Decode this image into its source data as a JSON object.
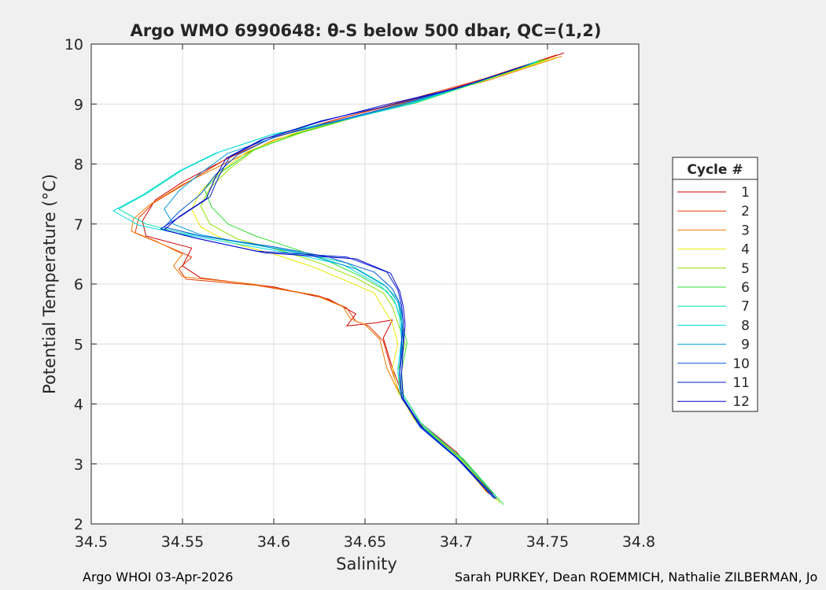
{
  "footer": {
    "left": "Argo WHOI 03-Apr-2026",
    "right": "Sarah PURKEY, Dean ROEMMICH, Nathalie ZILBERMAN, Jo"
  },
  "chart_data": {
    "type": "line",
    "title": "Argo WMO 6990648: θ-S below 500 dbar,  QC=(1,2)",
    "xlabel": "Salinity",
    "ylabel": "Potential Temperature (°C)",
    "xlim": [
      34.5,
      34.8
    ],
    "ylim": [
      2,
      10
    ],
    "xticks": [
      "34.5",
      "34.55",
      "34.6",
      "34.65",
      "34.7",
      "34.75",
      "34.8"
    ],
    "yticks": [
      "2",
      "3",
      "4",
      "5",
      "6",
      "7",
      "8",
      "9",
      "10"
    ],
    "grid": true,
    "legend": {
      "title": "Cycle #",
      "placement": "outside-right"
    },
    "series": [
      {
        "name": "1",
        "color": "#d00000",
        "points": [
          [
            34.759,
            9.85
          ],
          [
            34.72,
            9.45
          ],
          [
            34.68,
            9.1
          ],
          [
            34.635,
            8.75
          ],
          [
            34.6,
            8.45
          ],
          [
            34.575,
            8.1
          ],
          [
            34.55,
            7.7
          ],
          [
            34.535,
            7.4
          ],
          [
            34.528,
            7.05
          ],
          [
            34.53,
            6.8
          ],
          [
            34.555,
            6.6
          ],
          [
            34.55,
            6.3
          ],
          [
            34.56,
            6.1
          ],
          [
            34.6,
            5.95
          ],
          [
            34.63,
            5.75
          ],
          [
            34.645,
            5.5
          ],
          [
            34.64,
            5.3
          ],
          [
            34.655,
            5.35
          ],
          [
            34.665,
            5.4
          ],
          [
            34.66,
            5.1
          ],
          [
            34.665,
            4.6
          ],
          [
            34.67,
            4.2
          ],
          [
            34.68,
            3.7
          ],
          [
            34.7,
            3.2
          ],
          [
            34.72,
            2.5
          ]
        ]
      },
      {
        "name": "2",
        "color": "#e83800",
        "points": [
          [
            34.755,
            9.82
          ],
          [
            34.715,
            9.42
          ],
          [
            34.675,
            9.08
          ],
          [
            34.632,
            8.72
          ],
          [
            34.598,
            8.42
          ],
          [
            34.572,
            8.05
          ],
          [
            34.552,
            7.68
          ],
          [
            34.534,
            7.35
          ],
          [
            34.526,
            7.1
          ],
          [
            34.524,
            6.85
          ],
          [
            34.54,
            6.65
          ],
          [
            34.555,
            6.45
          ],
          [
            34.548,
            6.25
          ],
          [
            34.552,
            6.08
          ],
          [
            34.59,
            5.98
          ],
          [
            34.625,
            5.8
          ],
          [
            34.64,
            5.6
          ],
          [
            34.645,
            5.38
          ],
          [
            34.652,
            5.3
          ],
          [
            34.66,
            5.05
          ],
          [
            34.664,
            4.62
          ],
          [
            34.668,
            4.25
          ],
          [
            34.678,
            3.72
          ],
          [
            34.698,
            3.22
          ],
          [
            34.718,
            2.5
          ]
        ]
      },
      {
        "name": "3",
        "color": "#f07800",
        "points": [
          [
            34.758,
            9.8
          ],
          [
            34.718,
            9.4
          ],
          [
            34.676,
            9.06
          ],
          [
            34.634,
            8.7
          ],
          [
            34.6,
            8.4
          ],
          [
            34.574,
            8.02
          ],
          [
            34.55,
            7.66
          ],
          [
            34.532,
            7.32
          ],
          [
            34.523,
            7.08
          ],
          [
            34.522,
            6.88
          ],
          [
            34.535,
            6.72
          ],
          [
            34.55,
            6.5
          ],
          [
            34.545,
            6.3
          ],
          [
            34.55,
            6.12
          ],
          [
            34.588,
            6.0
          ],
          [
            34.622,
            5.82
          ],
          [
            34.638,
            5.62
          ],
          [
            34.642,
            5.42
          ],
          [
            34.65,
            5.32
          ],
          [
            34.658,
            5.08
          ],
          [
            34.662,
            4.6
          ],
          [
            34.667,
            4.28
          ],
          [
            34.677,
            3.74
          ],
          [
            34.697,
            3.24
          ],
          [
            34.717,
            2.52
          ]
        ]
      },
      {
        "name": "4",
        "color": "#e8e800",
        "points": [
          [
            34.755,
            9.78
          ],
          [
            34.716,
            9.4
          ],
          [
            34.678,
            9.05
          ],
          [
            34.64,
            8.75
          ],
          [
            34.61,
            8.5
          ],
          [
            34.585,
            8.2
          ],
          [
            34.57,
            7.85
          ],
          [
            34.56,
            7.55
          ],
          [
            34.555,
            7.25
          ],
          [
            34.56,
            6.95
          ],
          [
            34.575,
            6.7
          ],
          [
            34.6,
            6.5
          ],
          [
            34.62,
            6.3
          ],
          [
            34.64,
            6.05
          ],
          [
            34.655,
            5.85
          ],
          [
            34.66,
            5.6
          ],
          [
            34.665,
            5.35
          ],
          [
            34.668,
            5.0
          ],
          [
            34.665,
            4.6
          ],
          [
            34.668,
            4.2
          ],
          [
            34.678,
            3.7
          ],
          [
            34.7,
            3.15
          ],
          [
            34.722,
            2.4
          ]
        ]
      },
      {
        "name": "5",
        "color": "#90e000",
        "points": [
          [
            34.75,
            9.75
          ],
          [
            34.714,
            9.38
          ],
          [
            34.68,
            9.05
          ],
          [
            34.645,
            8.78
          ],
          [
            34.615,
            8.52
          ],
          [
            34.59,
            8.25
          ],
          [
            34.575,
            7.9
          ],
          [
            34.565,
            7.6
          ],
          [
            34.56,
            7.3
          ],
          [
            34.565,
            7.0
          ],
          [
            34.58,
            6.75
          ],
          [
            34.605,
            6.55
          ],
          [
            34.625,
            6.35
          ],
          [
            34.645,
            6.1
          ],
          [
            34.66,
            5.85
          ],
          [
            34.665,
            5.62
          ],
          [
            34.668,
            5.35
          ],
          [
            34.672,
            5.0
          ],
          [
            34.668,
            4.55
          ],
          [
            34.67,
            4.15
          ],
          [
            34.68,
            3.65
          ],
          [
            34.702,
            3.1
          ],
          [
            34.724,
            2.35
          ]
        ]
      },
      {
        "name": "6",
        "color": "#30e030",
        "points": [
          [
            34.748,
            9.74
          ],
          [
            34.712,
            9.36
          ],
          [
            34.678,
            9.02
          ],
          [
            34.642,
            8.76
          ],
          [
            34.612,
            8.5
          ],
          [
            34.588,
            8.22
          ],
          [
            34.572,
            7.88
          ],
          [
            34.562,
            7.58
          ],
          [
            34.566,
            7.28
          ],
          [
            34.575,
            7.0
          ],
          [
            34.59,
            6.8
          ],
          [
            34.61,
            6.6
          ],
          [
            34.63,
            6.38
          ],
          [
            34.648,
            6.12
          ],
          [
            34.662,
            5.88
          ],
          [
            34.667,
            5.65
          ],
          [
            34.67,
            5.38
          ],
          [
            34.673,
            5.02
          ],
          [
            34.67,
            4.55
          ],
          [
            34.671,
            4.15
          ],
          [
            34.682,
            3.62
          ],
          [
            34.704,
            3.08
          ],
          [
            34.726,
            2.32
          ]
        ]
      },
      {
        "name": "7",
        "color": "#00e0b0",
        "points": [
          [
            34.745,
            9.72
          ],
          [
            34.71,
            9.35
          ],
          [
            34.675,
            9.0
          ],
          [
            34.64,
            8.75
          ],
          [
            34.6,
            8.5
          ],
          [
            34.57,
            8.2
          ],
          [
            34.55,
            7.9
          ],
          [
            34.53,
            7.5
          ],
          [
            34.515,
            7.25
          ],
          [
            34.53,
            7.0
          ],
          [
            34.55,
            6.85
          ],
          [
            34.58,
            6.7
          ],
          [
            34.61,
            6.55
          ],
          [
            34.64,
            6.35
          ],
          [
            34.66,
            6.0
          ],
          [
            34.668,
            5.75
          ],
          [
            34.67,
            5.45
          ],
          [
            34.671,
            5.1
          ],
          [
            34.669,
            4.6
          ],
          [
            34.67,
            4.2
          ],
          [
            34.68,
            3.7
          ],
          [
            34.702,
            3.12
          ],
          [
            34.722,
            2.45
          ]
        ]
      },
      {
        "name": "8",
        "color": "#00d8e8",
        "points": [
          [
            34.744,
            9.7
          ],
          [
            34.708,
            9.34
          ],
          [
            34.672,
            8.98
          ],
          [
            34.638,
            8.73
          ],
          [
            34.598,
            8.48
          ],
          [
            34.568,
            8.18
          ],
          [
            34.548,
            7.88
          ],
          [
            34.528,
            7.48
          ],
          [
            34.512,
            7.22
          ],
          [
            34.526,
            6.98
          ],
          [
            34.548,
            6.84
          ],
          [
            34.578,
            6.68
          ],
          [
            34.608,
            6.52
          ],
          [
            34.638,
            6.32
          ],
          [
            34.658,
            5.98
          ],
          [
            34.666,
            5.74
          ],
          [
            34.669,
            5.44
          ],
          [
            34.67,
            5.08
          ],
          [
            34.668,
            4.58
          ],
          [
            34.669,
            4.18
          ],
          [
            34.679,
            3.68
          ],
          [
            34.701,
            3.1
          ],
          [
            34.721,
            2.44
          ]
        ]
      },
      {
        "name": "9",
        "color": "#0098e0",
        "points": [
          [
            34.742,
            9.68
          ],
          [
            34.706,
            9.32
          ],
          [
            34.67,
            8.98
          ],
          [
            34.636,
            8.72
          ],
          [
            34.604,
            8.48
          ],
          [
            34.575,
            8.18
          ],
          [
            34.56,
            7.85
          ],
          [
            34.548,
            7.55
          ],
          [
            34.54,
            7.25
          ],
          [
            34.545,
            7.0
          ],
          [
            34.56,
            6.82
          ],
          [
            34.59,
            6.65
          ],
          [
            34.62,
            6.48
          ],
          [
            34.645,
            6.25
          ],
          [
            34.662,
            5.95
          ],
          [
            34.668,
            5.7
          ],
          [
            34.67,
            5.4
          ],
          [
            34.67,
            5.05
          ],
          [
            34.669,
            4.55
          ],
          [
            34.67,
            4.15
          ],
          [
            34.68,
            3.65
          ],
          [
            34.7,
            3.12
          ],
          [
            34.72,
            2.45
          ]
        ]
      },
      {
        "name": "10",
        "color": "#0058d8",
        "points": [
          [
            34.74,
            9.66
          ],
          [
            34.704,
            9.3
          ],
          [
            34.668,
            8.98
          ],
          [
            34.632,
            8.7
          ],
          [
            34.6,
            8.45
          ],
          [
            34.58,
            8.15
          ],
          [
            34.568,
            7.82
          ],
          [
            34.56,
            7.5
          ],
          [
            34.548,
            7.2
          ],
          [
            34.54,
            6.95
          ],
          [
            34.56,
            6.8
          ],
          [
            34.6,
            6.62
          ],
          [
            34.63,
            6.45
          ],
          [
            34.655,
            6.2
          ],
          [
            34.665,
            5.92
          ],
          [
            34.669,
            5.68
          ],
          [
            34.671,
            5.38
          ],
          [
            34.671,
            5.02
          ],
          [
            34.669,
            4.52
          ],
          [
            34.67,
            4.12
          ],
          [
            34.68,
            3.62
          ],
          [
            34.7,
            3.1
          ],
          [
            34.72,
            2.45
          ]
        ]
      },
      {
        "name": "11",
        "color": "#0020c8",
        "points": [
          [
            34.738,
            9.64
          ],
          [
            34.702,
            9.28
          ],
          [
            34.664,
            8.98
          ],
          [
            34.626,
            8.72
          ],
          [
            34.595,
            8.42
          ],
          [
            34.576,
            8.12
          ],
          [
            34.57,
            7.8
          ],
          [
            34.565,
            7.45
          ],
          [
            34.55,
            7.15
          ],
          [
            34.538,
            6.92
          ],
          [
            34.555,
            6.78
          ],
          [
            34.59,
            6.55
          ],
          [
            34.64,
            6.45
          ],
          [
            34.662,
            6.2
          ],
          [
            34.668,
            5.9
          ],
          [
            34.67,
            5.65
          ],
          [
            34.671,
            5.35
          ],
          [
            34.67,
            5.0
          ],
          [
            34.669,
            4.5
          ],
          [
            34.67,
            4.1
          ],
          [
            34.681,
            3.6
          ],
          [
            34.701,
            3.08
          ],
          [
            34.721,
            2.42
          ]
        ]
      },
      {
        "name": "12",
        "color": "#0000d0",
        "points": [
          [
            34.736,
            9.62
          ],
          [
            34.7,
            9.26
          ],
          [
            34.66,
            8.98
          ],
          [
            34.625,
            8.7
          ],
          [
            34.593,
            8.4
          ],
          [
            34.574,
            8.1
          ],
          [
            34.568,
            7.78
          ],
          [
            34.563,
            7.42
          ],
          [
            34.548,
            7.12
          ],
          [
            34.54,
            6.9
          ],
          [
            34.558,
            6.76
          ],
          [
            34.595,
            6.52
          ],
          [
            34.645,
            6.42
          ],
          [
            34.664,
            6.18
          ],
          [
            34.669,
            5.88
          ],
          [
            34.671,
            5.62
          ],
          [
            34.672,
            5.32
          ],
          [
            34.671,
            4.98
          ],
          [
            34.67,
            4.48
          ],
          [
            34.671,
            4.08
          ],
          [
            34.682,
            3.58
          ],
          [
            34.702,
            3.06
          ],
          [
            34.722,
            2.42
          ]
        ]
      }
    ]
  }
}
